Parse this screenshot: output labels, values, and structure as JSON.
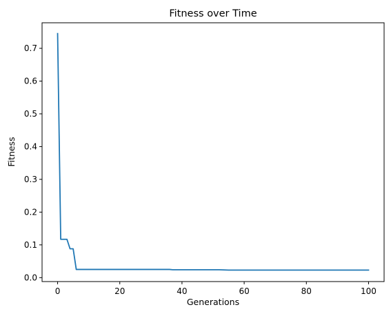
{
  "chart_data": {
    "type": "line",
    "title": "Fitness over Time",
    "xlabel": "Generations",
    "ylabel": "Fitness",
    "xlim": [
      -5,
      105
    ],
    "ylim": [
      -0.012,
      0.778
    ],
    "x_ticks": [
      0,
      20,
      40,
      60,
      80,
      100
    ],
    "y_ticks": [
      0.0,
      0.1,
      0.2,
      0.3,
      0.4,
      0.5,
      0.6,
      0.7
    ],
    "x_tick_labels": [
      "0",
      "20",
      "40",
      "60",
      "80",
      "100"
    ],
    "y_tick_labels": [
      "0.0",
      "0.1",
      "0.2",
      "0.3",
      "0.4",
      "0.5",
      "0.6",
      "0.7"
    ],
    "grid": false,
    "series": [
      {
        "color": "#1f77b4",
        "points": [
          [
            0,
            0.745
          ],
          [
            1,
            0.117
          ],
          [
            3,
            0.117
          ],
          [
            4,
            0.088
          ],
          [
            5,
            0.088
          ],
          [
            6,
            0.025
          ],
          [
            36,
            0.025
          ],
          [
            37,
            0.024
          ],
          [
            52,
            0.024
          ],
          [
            55,
            0.023
          ],
          [
            100,
            0.023
          ]
        ]
      }
    ]
  }
}
